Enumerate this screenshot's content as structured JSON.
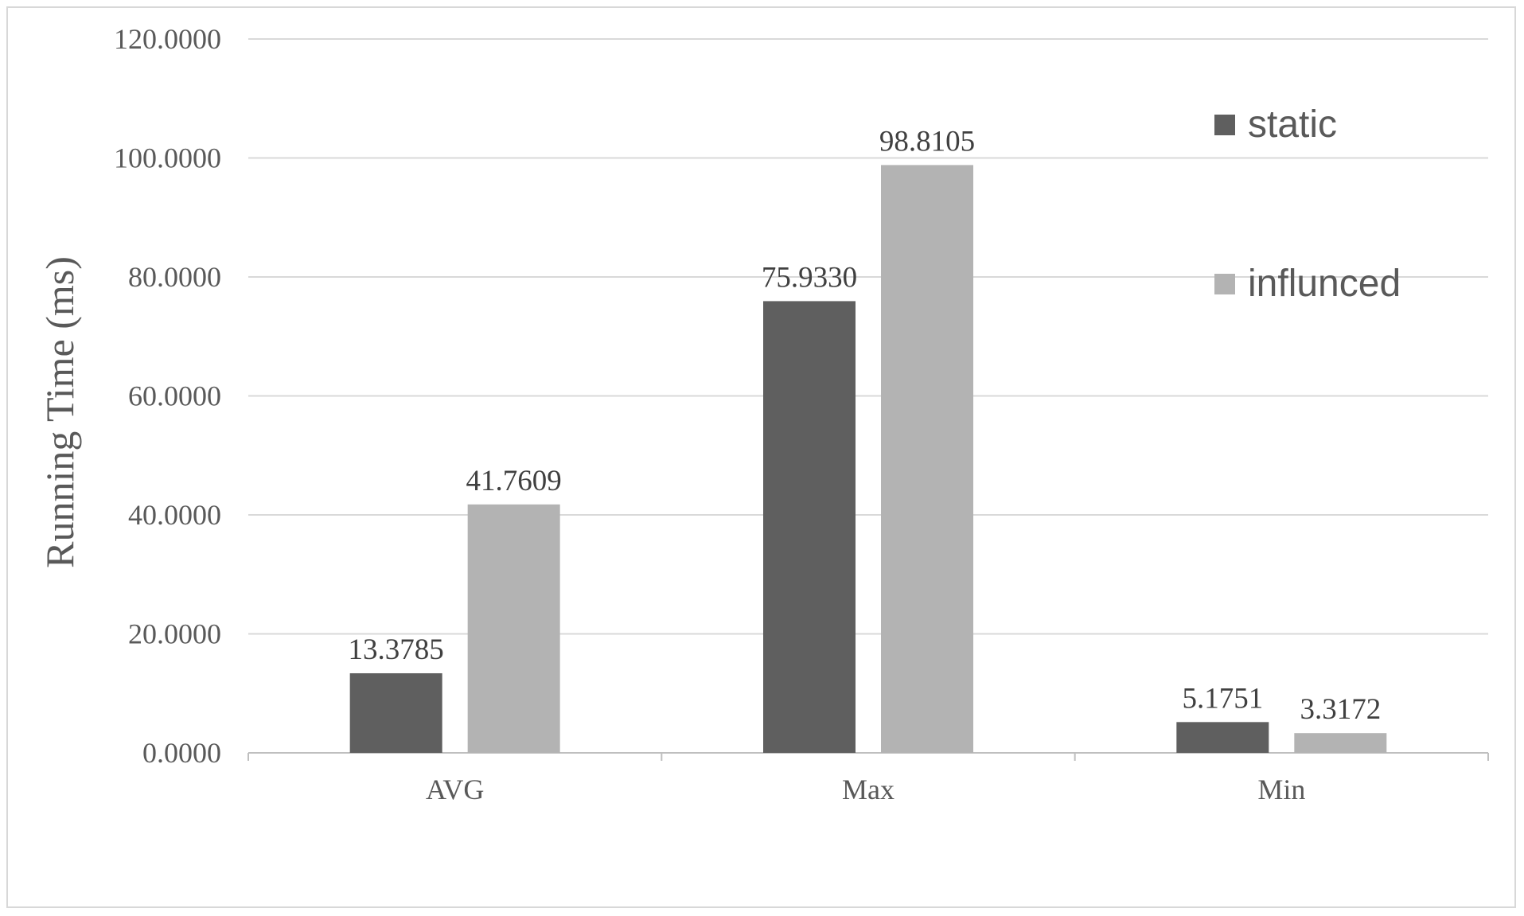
{
  "chart_data": {
    "type": "bar",
    "categories": [
      "AVG",
      "Max",
      "Min"
    ],
    "series": [
      {
        "name": "static",
        "color": "#5f5f5f",
        "values": [
          13.3785,
          75.933,
          5.1751
        ],
        "labels": [
          "13.3785",
          "75.9330",
          "5.1751"
        ]
      },
      {
        "name": "influnced",
        "color": "#b3b3b3",
        "values": [
          41.7609,
          98.8105,
          3.3172
        ],
        "labels": [
          "41.7609",
          "98.8105",
          "3.3172"
        ]
      }
    ],
    "ylabel": "Running Time (ms)",
    "xlabel": "",
    "ylim": [
      0,
      120
    ],
    "yticks": [
      0,
      20,
      40,
      60,
      80,
      100,
      120
    ],
    "ytick_labels": [
      "0.0000",
      "20.0000",
      "40.0000",
      "60.0000",
      "80.0000",
      "100.0000",
      "120.0000"
    ],
    "grid": true,
    "legend_position": "top-right"
  }
}
